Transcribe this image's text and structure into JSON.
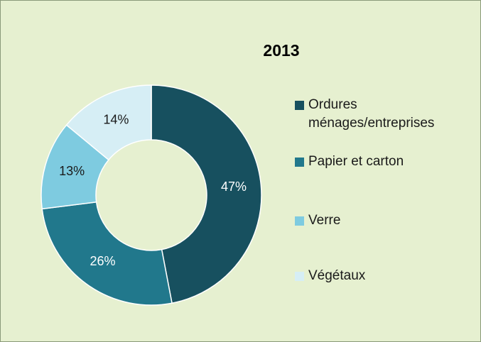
{
  "chart_data": {
    "type": "donut",
    "title": "2013",
    "categories": [
      "Ordures ménages/entreprises",
      "Papier et carton",
      "Verre",
      "Végétaux"
    ],
    "values": [
      47,
      26,
      13,
      14
    ],
    "value_labels": [
      "47%",
      "26%",
      "13%",
      "14%"
    ],
    "colors": [
      "#17505f",
      "#21788c",
      "#7ecbe0",
      "#d6eef5"
    ],
    "legend": "right"
  }
}
